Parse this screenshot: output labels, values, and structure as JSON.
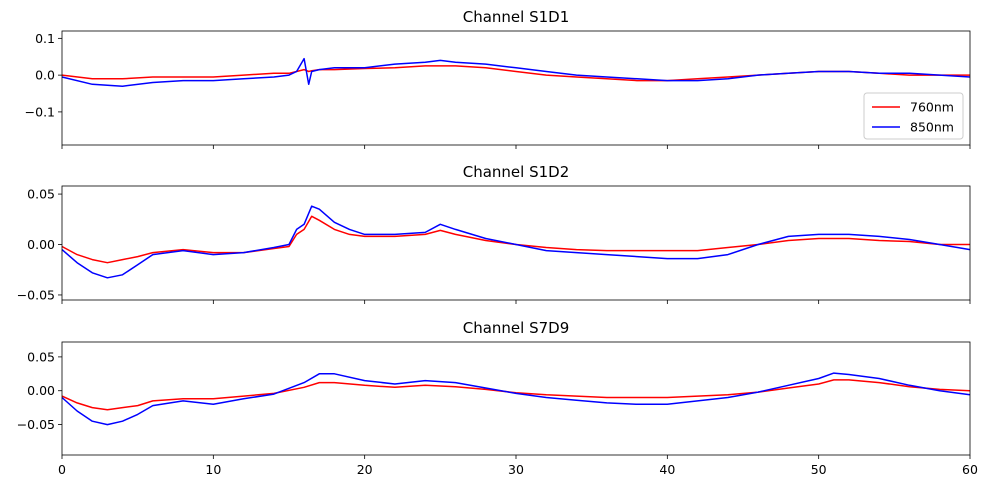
{
  "chart_data": [
    {
      "type": "line",
      "title": "Channel S1D1",
      "xlim": [
        0,
        60
      ],
      "ylim": [
        -0.19,
        0.12
      ],
      "yticks": [
        0.1,
        0.0,
        -0.1
      ],
      "ytick_labels": [
        "0.1",
        "0.0",
        "−0.1"
      ],
      "xticks": [
        0,
        10,
        20,
        30,
        40,
        50,
        60
      ],
      "xtick_labels": [],
      "legend": {
        "position": "lower-right",
        "entries": [
          "760nm",
          "850nm"
        ]
      },
      "x": [
        0,
        2,
        4,
        6,
        8,
        10,
        12,
        14,
        15,
        15.5,
        16,
        16.3,
        16.5,
        17,
        18,
        20,
        22,
        24,
        25,
        26,
        28,
        30,
        32,
        34,
        36,
        38,
        40,
        42,
        44,
        46,
        48,
        50,
        52,
        54,
        56,
        58,
        60
      ],
      "series": [
        {
          "name": "760nm",
          "color": "#ff0000",
          "values": [
            0.0,
            -0.01,
            -0.01,
            -0.005,
            -0.005,
            -0.005,
            0.0,
            0.005,
            0.005,
            0.01,
            0.015,
            0.01,
            0.012,
            0.015,
            0.015,
            0.018,
            0.02,
            0.025,
            0.025,
            0.025,
            0.02,
            0.01,
            0.0,
            -0.005,
            -0.01,
            -0.015,
            -0.015,
            -0.01,
            -0.005,
            0.0,
            0.005,
            0.01,
            0.01,
            0.005,
            0.0,
            0.0,
            0.0
          ]
        },
        {
          "name": "850nm",
          "color": "#0000ff",
          "values": [
            -0.005,
            -0.025,
            -0.03,
            -0.02,
            -0.015,
            -0.015,
            -0.01,
            -0.005,
            0.0,
            0.01,
            0.045,
            -0.025,
            0.01,
            0.015,
            0.02,
            0.02,
            0.03,
            0.035,
            0.04,
            0.035,
            0.03,
            0.02,
            0.01,
            0.0,
            -0.005,
            -0.01,
            -0.015,
            -0.015,
            -0.01,
            0.0,
            0.005,
            0.01,
            0.01,
            0.005,
            0.005,
            0.0,
            -0.005
          ]
        }
      ]
    },
    {
      "type": "line",
      "title": "Channel S1D2",
      "xlim": [
        0,
        60
      ],
      "ylim": [
        -0.055,
        0.058
      ],
      "yticks": [
        0.05,
        0.0,
        -0.05
      ],
      "ytick_labels": [
        "0.05",
        "0.00",
        "−0.05"
      ],
      "xticks": [
        0,
        10,
        20,
        30,
        40,
        50,
        60
      ],
      "xtick_labels": [],
      "x": [
        0,
        1,
        2,
        3,
        4,
        5,
        6,
        8,
        10,
        12,
        14,
        15,
        15.5,
        16,
        16.5,
        17,
        18,
        19,
        20,
        22,
        24,
        25,
        26,
        28,
        30,
        32,
        34,
        36,
        38,
        40,
        42,
        44,
        46,
        48,
        50,
        52,
        54,
        56,
        58,
        60
      ],
      "series": [
        {
          "name": "760nm",
          "color": "#ff0000",
          "values": [
            -0.002,
            -0.01,
            -0.015,
            -0.018,
            -0.015,
            -0.012,
            -0.008,
            -0.005,
            -0.008,
            -0.008,
            -0.004,
            -0.002,
            0.01,
            0.015,
            0.028,
            0.024,
            0.015,
            0.01,
            0.008,
            0.008,
            0.01,
            0.014,
            0.01,
            0.004,
            0.0,
            -0.003,
            -0.005,
            -0.006,
            -0.006,
            -0.006,
            -0.006,
            -0.003,
            0.0,
            0.004,
            0.006,
            0.006,
            0.004,
            0.003,
            0.0,
            0.0
          ]
        },
        {
          "name": "850nm",
          "color": "#0000ff",
          "values": [
            -0.005,
            -0.018,
            -0.028,
            -0.033,
            -0.03,
            -0.02,
            -0.01,
            -0.006,
            -0.01,
            -0.008,
            -0.003,
            0.0,
            0.015,
            0.02,
            0.038,
            0.035,
            0.022,
            0.015,
            0.01,
            0.01,
            0.012,
            0.02,
            0.015,
            0.006,
            0.0,
            -0.006,
            -0.008,
            -0.01,
            -0.012,
            -0.014,
            -0.014,
            -0.01,
            0.0,
            0.008,
            0.01,
            0.01,
            0.008,
            0.005,
            0.0,
            -0.005
          ]
        }
      ]
    },
    {
      "type": "line",
      "title": "Channel S7D9",
      "xlim": [
        0,
        60
      ],
      "ylim": [
        -0.095,
        0.072
      ],
      "yticks": [
        0.05,
        0.0,
        -0.05
      ],
      "ytick_labels": [
        "0.05",
        "0.00",
        "−0.05"
      ],
      "xticks": [
        0,
        10,
        20,
        30,
        40,
        50,
        60
      ],
      "xtick_labels": [
        "0",
        "10",
        "20",
        "30",
        "40",
        "50",
        "60"
      ],
      "x": [
        0,
        1,
        2,
        3,
        4,
        5,
        6,
        8,
        10,
        12,
        14,
        16,
        17,
        18,
        20,
        22,
        24,
        26,
        28,
        30,
        32,
        34,
        36,
        38,
        40,
        42,
        44,
        46,
        48,
        50,
        51,
        52,
        54,
        56,
        58,
        60
      ],
      "series": [
        {
          "name": "760nm",
          "color": "#ff0000",
          "values": [
            -0.008,
            -0.018,
            -0.025,
            -0.028,
            -0.025,
            -0.022,
            -0.015,
            -0.012,
            -0.012,
            -0.008,
            -0.004,
            0.005,
            0.012,
            0.012,
            0.008,
            0.005,
            0.008,
            0.006,
            0.002,
            -0.003,
            -0.006,
            -0.008,
            -0.01,
            -0.01,
            -0.01,
            -0.008,
            -0.006,
            -0.002,
            0.004,
            0.01,
            0.016,
            0.016,
            0.012,
            0.006,
            0.002,
            0.0
          ]
        },
        {
          "name": "850nm",
          "color": "#0000ff",
          "values": [
            -0.01,
            -0.03,
            -0.045,
            -0.05,
            -0.045,
            -0.035,
            -0.022,
            -0.015,
            -0.02,
            -0.012,
            -0.005,
            0.012,
            0.025,
            0.025,
            0.015,
            0.01,
            0.015,
            0.012,
            0.004,
            -0.004,
            -0.01,
            -0.014,
            -0.018,
            -0.02,
            -0.02,
            -0.015,
            -0.01,
            -0.002,
            0.008,
            0.018,
            0.026,
            0.024,
            0.018,
            0.008,
            0.0,
            -0.006
          ]
        }
      ]
    }
  ]
}
